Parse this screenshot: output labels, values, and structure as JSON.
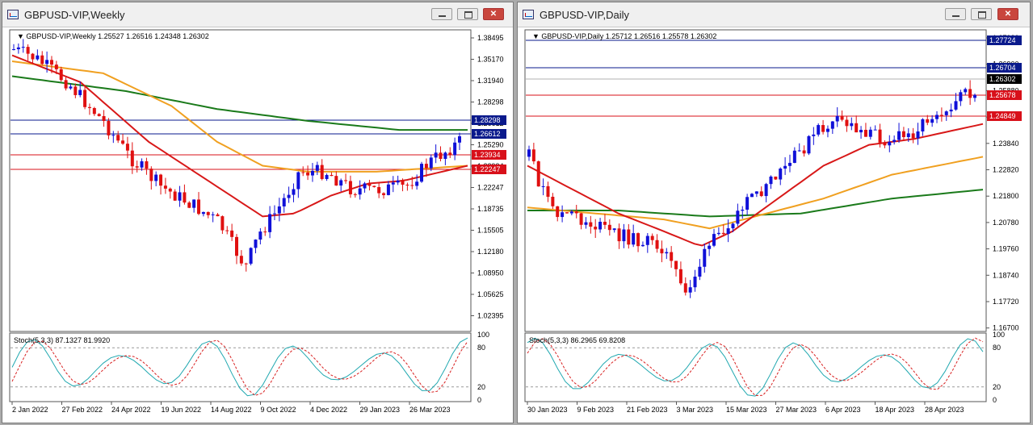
{
  "windows": [
    {
      "title": "GBPUSD-VIP,Weekly",
      "header_symbol": "GBPUSD-VIP,Weekly",
      "header_ohlc": "1.25527 1.26516 1.24348 1.26302",
      "price_scale": [
        "1.38495",
        "1.35170",
        "1.31940",
        "1.28298",
        "1.26612",
        "1.25290",
        "1.23934",
        "1.22247",
        "1.18735",
        "1.15505",
        "1.12180",
        "1.08950",
        "1.05625",
        "1.02395"
      ],
      "level_labels": [
        {
          "text": "1.28298",
          "bg": "#0a1a8c"
        },
        {
          "text": "1.26612",
          "bg": "#0a1a8c"
        },
        {
          "text": "1.23934",
          "bg": "#d8101a"
        },
        {
          "text": "1.22247",
          "bg": "#d8101a"
        }
      ],
      "stoch_label": "Stoch(5,3,3) 87.1327 81.9920",
      "stoch_scale": [
        "100",
        "80",
        "20",
        "0"
      ],
      "time_labels": [
        "2 Jan 2022",
        "27 Feb 2022",
        "24 Apr 2022",
        "19 Jun 2022",
        "14 Aug 2022",
        "9 Oct 2022",
        "4 Dec 2022",
        "29 Jan 2023",
        "26 Mar 2023"
      ]
    },
    {
      "title": "GBPUSD-VIP,Daily",
      "header_symbol": "GBPUSD-VIP,Daily",
      "header_ohlc": "1.25712 1.26516 1.25578 1.26302",
      "price_scale": [
        "1.27920",
        "1.26900",
        "1.25880",
        "1.24860",
        "1.23840",
        "1.22820",
        "1.21800",
        "1.20780",
        "1.19760",
        "1.18740",
        "1.17720",
        "1.16700"
      ],
      "level_labels": [
        {
          "text": "1.27724",
          "bg": "#0a1a8c"
        },
        {
          "text": "1.26704",
          "bg": "#0a1a8c"
        },
        {
          "text": "1.26302",
          "bg": "#000000"
        },
        {
          "text": "1.25678",
          "bg": "#d8101a"
        },
        {
          "text": "1.24849",
          "bg": "#d8101a"
        }
      ],
      "stoch_label": "Stoch(5,3,3) 86.2965 69.8208",
      "stoch_scale": [
        "100",
        "80",
        "20",
        "0"
      ],
      "time_labels": [
        "30 Jan 2023",
        "9 Feb 2023",
        "21 Feb 2023",
        "3 Mar 2023",
        "15 Mar 2023",
        "27 Mar 2023",
        "6 Apr 2023",
        "18 Apr 2023",
        "28 Apr 2023"
      ]
    }
  ],
  "colors": {
    "bull": "#1010d8",
    "bear": "#e01010",
    "ma_fast": "#d81818",
    "ma_mid": "#f0a020",
    "ma_slow": "#1a7a1a",
    "stoch_main": "#20a8b0",
    "stoch_signal": "#d82020"
  }
}
